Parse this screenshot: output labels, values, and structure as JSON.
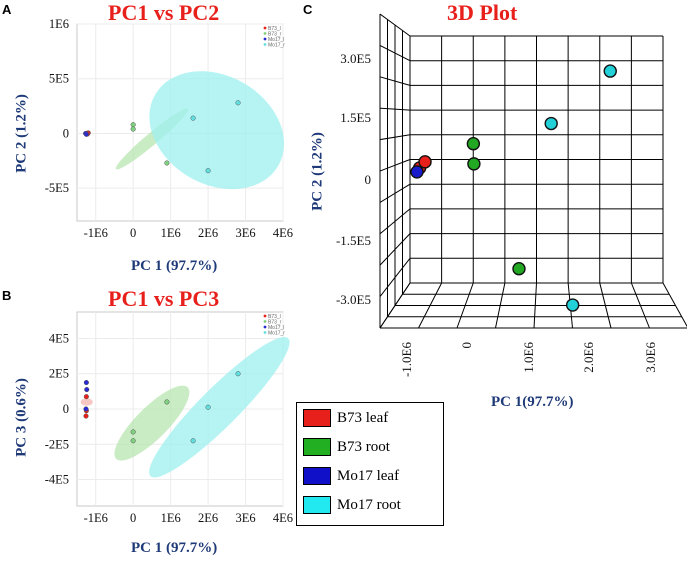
{
  "panels": {
    "a_letter": "A",
    "b_letter": "B",
    "c_letter": "C"
  },
  "chart_data": [
    {
      "id": "pc1_pc2",
      "type": "scatter",
      "title": "PC1 vs PC2",
      "xlabel": "PC 1 (97.7%)",
      "ylabel": "PC 2 (1.2%)",
      "xlim": [
        -1500000,
        4000000
      ],
      "ylim": [
        -800000,
        1000000
      ],
      "xticks": [
        "-1E6",
        "0",
        "1E6",
        "2E6",
        "3E6",
        "4E6"
      ],
      "xtick_values": [
        -1000000,
        0,
        1000000,
        2000000,
        3000000,
        4000000
      ],
      "yticks": [
        "1E6",
        "5E5",
        "0",
        "-5E5"
      ],
      "ytick_values": [
        1000000,
        500000,
        0,
        -500000
      ],
      "grid": true,
      "legend": {
        "position": "top-right",
        "entries": [
          "B73_l",
          "B73_r",
          "Mo17_l",
          "Mo17_r"
        ]
      },
      "series": [
        {
          "name": "B73_l",
          "color": "#e8201c",
          "points": [
            [
              -1250000,
              0
            ],
            [
              -1200000,
              5000
            ],
            [
              -1220000,
              -5000
            ]
          ]
        },
        {
          "name": "B73_r",
          "color": "#7fd07f",
          "points": [
            [
              0,
              80000
            ],
            [
              0,
              40000
            ],
            [
              900000,
              -270000
            ]
          ]
        },
        {
          "name": "Mo17_l",
          "color": "#2a2ad0",
          "points": [
            [
              -1270000,
              0
            ],
            [
              -1250000,
              -8000
            ]
          ]
        },
        {
          "name": "Mo17_r",
          "color": "#5fe0e0",
          "points": [
            [
              1600000,
              140000
            ],
            [
              2000000,
              -340000
            ],
            [
              2800000,
              280000
            ]
          ]
        }
      ],
      "ellipses": [
        {
          "group": "B73_r",
          "color": "#b8e6b0",
          "cx": 500000,
          "cy": -50000,
          "rx": 1250000,
          "ry": 40000,
          "angle_deg": -40
        },
        {
          "group": "Mo17_r",
          "color": "#9ef0f0",
          "cx": 2230000,
          "cy": 30000,
          "rx": 1450000,
          "ry": 650000,
          "angle_deg": -60
        }
      ]
    },
    {
      "id": "pc1_pc3",
      "type": "scatter",
      "title": "PC1 vs PC3",
      "xlabel": "PC 1 (97.7%)",
      "ylabel": "PC 3 (0.6%)",
      "xlim": [
        -1500000,
        4000000
      ],
      "ylim": [
        -550000,
        550000
      ],
      "xticks": [
        "-1E6",
        "0",
        "1E6",
        "2E6",
        "3E6",
        "4E6"
      ],
      "xtick_values": [
        -1000000,
        0,
        1000000,
        2000000,
        3000000,
        4000000
      ],
      "yticks": [
        "4E5",
        "2E5",
        "0",
        "-2E5",
        "-4E5"
      ],
      "ytick_values": [
        400000,
        200000,
        0,
        -200000,
        -400000
      ],
      "grid": true,
      "legend": {
        "position": "top-right",
        "entries": [
          "B73_l",
          "B73_r",
          "Mo17_l",
          "Mo17_r"
        ]
      },
      "series": [
        {
          "name": "B73_l",
          "color": "#e8201c",
          "points": [
            [
              -1250000,
              70000
            ],
            [
              -1250000,
              -10000
            ],
            [
              -1260000,
              -40000
            ]
          ]
        },
        {
          "name": "B73_r",
          "color": "#7fd07f",
          "points": [
            [
              0,
              -130000
            ],
            [
              0,
              -180000
            ],
            [
              900000,
              40000
            ]
          ]
        },
        {
          "name": "Mo17_l",
          "color": "#2a2ad0",
          "points": [
            [
              -1250000,
              150000
            ],
            [
              -1240000,
              110000
            ],
            [
              -1260000,
              0
            ]
          ]
        },
        {
          "name": "Mo17_r",
          "color": "#5fe0e0",
          "points": [
            [
              1600000,
              -180000
            ],
            [
              2000000,
              10000
            ],
            [
              2800000,
              200000
            ]
          ]
        }
      ],
      "ellipses": [
        {
          "group": "B73_l",
          "color": "#f4b4b0",
          "cx": -1240000,
          "cy": 40000,
          "rx": 100000,
          "ry": 14000,
          "angle_deg": 90
        },
        {
          "group": "B73_r",
          "color": "#b8e6b0",
          "cx": 500000,
          "cy": -80000,
          "rx": 1350000,
          "ry": 90000,
          "angle_deg": -45
        },
        {
          "group": "Mo17_r",
          "color": "#9ef0f0",
          "cx": 2300000,
          "cy": 10000,
          "rx": 2600000,
          "ry": 110000,
          "angle_deg": -45
        }
      ]
    },
    {
      "id": "plot3d",
      "type": "scatter",
      "title": "3D Plot",
      "xlabel": "PC 1(97.7%)",
      "ylabel": "PC 2 (1.2%)",
      "xlim": [
        -1000000,
        3000000
      ],
      "ylim": [
        -3000000,
        3000000
      ],
      "xticks": [
        "-1.0E6",
        "0",
        "1.0E6",
        "2.0E6",
        "3.0E6"
      ],
      "xtick_values": [
        -1000000,
        0,
        1000000,
        2000000,
        3000000
      ],
      "yticks": [
        "3.0E5",
        "1.5E5",
        "0",
        "-1.5E5",
        "-3.0E5"
      ],
      "grid": true,
      "legend": {
        "position": "bottom-left",
        "entries": [
          "B73 leaf",
          "B73 root",
          "Mo17 leaf",
          "Mo17 root"
        ]
      },
      "series": [
        {
          "name": "B73 leaf",
          "color": "#e8201c",
          "points": [
            [
              -950000,
              30000
            ],
            [
              -850000,
              45000
            ]
          ]
        },
        {
          "name": "B73 root",
          "color": "#22a822",
          "points": [
            [
              50000,
              90000
            ],
            [
              60000,
              40000
            ],
            [
              900000,
              -220000
            ]
          ]
        },
        {
          "name": "Mo17 leaf",
          "color": "#1a1acd",
          "points": [
            [
              -1000000,
              20000
            ]
          ]
        },
        {
          "name": "Mo17 root",
          "color": "#22d0d8",
          "points": [
            [
              1500000,
              140000
            ],
            [
              2600000,
              270000
            ],
            [
              1900000,
              -310000
            ]
          ]
        }
      ]
    }
  ],
  "legend3d": {
    "items": [
      {
        "label": "B73 leaf",
        "color": "#e8201c"
      },
      {
        "label": "B73 root",
        "color": "#22b022"
      },
      {
        "label": "Mo17 leaf",
        "color": "#1010c8"
      },
      {
        "label": "Mo17 root",
        "color": "#22e8f0"
      }
    ]
  }
}
